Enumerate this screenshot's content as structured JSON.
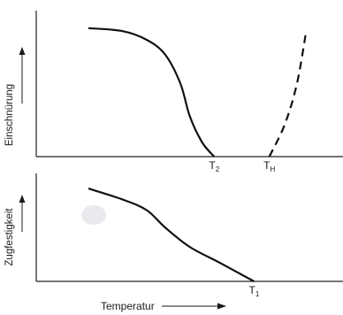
{
  "chart_data": [
    {
      "type": "line",
      "ylabel": "Einschnürung",
      "x_ticks": [
        {
          "id": "t2",
          "base": "T",
          "sub": "2",
          "x": 0.58
        },
        {
          "id": "th",
          "base": "T",
          "sub": "H",
          "x": 0.76
        }
      ],
      "xlim": [
        0,
        1
      ],
      "ylim": [
        0,
        1
      ],
      "grid": false,
      "series": [
        {
          "id": "reduction-of-area",
          "style": "solid",
          "points": [
            [
              0.17,
              0.88
            ],
            [
              0.28,
              0.86
            ],
            [
              0.36,
              0.8
            ],
            [
              0.42,
              0.7
            ],
            [
              0.47,
              0.5
            ],
            [
              0.5,
              0.28
            ],
            [
              0.54,
              0.1
            ],
            [
              0.58,
              0.0
            ]
          ]
        },
        {
          "id": "reduction-of-area-rise",
          "style": "dashed",
          "points": [
            [
              0.76,
              0.0
            ],
            [
              0.81,
              0.22
            ],
            [
              0.85,
              0.5
            ],
            [
              0.88,
              0.86
            ]
          ]
        }
      ]
    },
    {
      "type": "line",
      "ylabel": "Zugfestigkeit",
      "xlabel": "Temperatur",
      "x_ticks": [
        {
          "id": "t1",
          "base": "T",
          "sub": "1",
          "x": 0.71
        }
      ],
      "xlim": [
        0,
        1
      ],
      "ylim": [
        0,
        1
      ],
      "grid": false,
      "series": [
        {
          "id": "tensile-strength",
          "style": "solid",
          "points": [
            [
              0.17,
              0.86
            ],
            [
              0.28,
              0.76
            ],
            [
              0.36,
              0.66
            ],
            [
              0.42,
              0.5
            ],
            [
              0.5,
              0.32
            ],
            [
              0.6,
              0.17
            ],
            [
              0.71,
              0.0
            ]
          ]
        }
      ]
    }
  ]
}
